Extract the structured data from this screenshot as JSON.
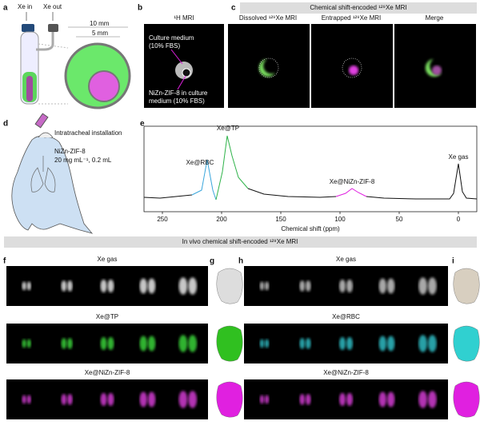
{
  "panels": {
    "a": {
      "letter": "a",
      "xe_in": "Xe in",
      "xe_out": "Xe out",
      "outer": "10 mm",
      "inner": "5 mm"
    },
    "b": {
      "letter": "b",
      "title": "¹H MRI",
      "outer_label": [
        "Culture medium",
        "(10% FBS)"
      ],
      "inner_label": [
        "NiZn-ZIF-8 in culture",
        "medium (10% FBS)"
      ]
    },
    "c": {
      "letter": "c",
      "header": "Chemical shift-encoded ¹²⁹Xe MRI",
      "images": [
        "Dissolved ¹²⁹Xe MRI",
        "Entrapped ¹²⁹Xe MRI",
        "Merge"
      ]
    },
    "d": {
      "letter": "d",
      "step": "Intratracheal installation",
      "agent": "NiZn-ZIF-8",
      "dose": "20 mg mL⁻¹, 0.2 mL"
    },
    "e": {
      "letter": "e",
      "xticks": [
        250,
        200,
        150,
        100,
        50,
        0
      ],
      "xlabel": "Chemical shift (ppm)",
      "peaks": [
        "Xe@TP",
        "Xe@RBC",
        "Xe@NiZn-ZIF-8",
        "Xe gas"
      ]
    },
    "invivo": {
      "header": "In vivo chemical shift-encoded ¹²⁹Xe MRI"
    },
    "f": {
      "letter": "f",
      "rows": [
        "Xe gas",
        "Xe@TP",
        "Xe@NiZn-ZIF-8"
      ]
    },
    "g": {
      "letter": "g"
    },
    "h": {
      "letter": "h",
      "rows": [
        "Xe gas",
        "Xe@RBC",
        "Xe@NiZn-ZIF-8"
      ]
    },
    "i": {
      "letter": "i"
    }
  }
}
